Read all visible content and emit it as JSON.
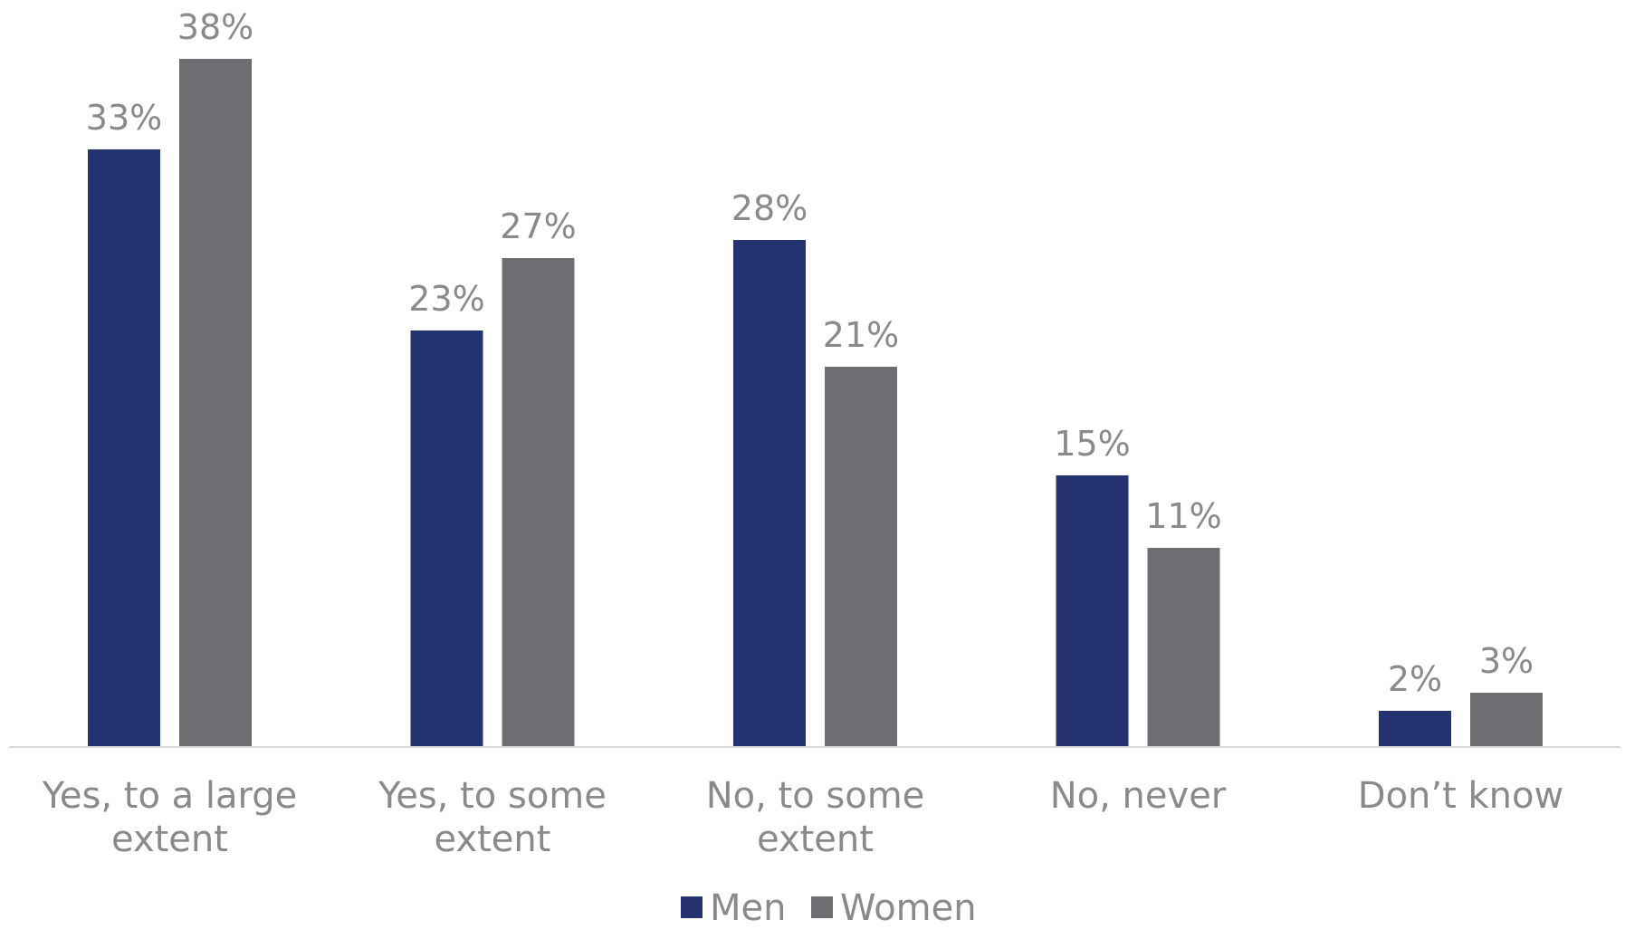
{
  "chart_data": {
    "type": "bar",
    "categories": [
      [
        "Yes, to a large",
        "extent"
      ],
      [
        "Yes, to some",
        "extent"
      ],
      [
        "No, to some",
        "extent"
      ],
      [
        "No, never"
      ],
      [
        "Don’t know"
      ]
    ],
    "series": [
      {
        "name": "Men",
        "color": "#253370",
        "values": [
          33,
          23,
          28,
          15,
          2
        ],
        "labels": [
          "33%",
          "23%",
          "28%",
          "15%",
          "2%"
        ]
      },
      {
        "name": "Women",
        "color": "#6d6e71",
        "values": [
          38,
          27,
          21,
          11,
          3
        ],
        "labels": [
          "38%",
          "27%",
          "21%",
          "11%",
          "3%"
        ]
      }
    ],
    "value_suffix": "%",
    "ylim": [
      0,
      38
    ],
    "grid": false,
    "legend_position": "bottom-center",
    "axis_color": "#d9d9d9",
    "label_color": "#8a8a8d"
  }
}
